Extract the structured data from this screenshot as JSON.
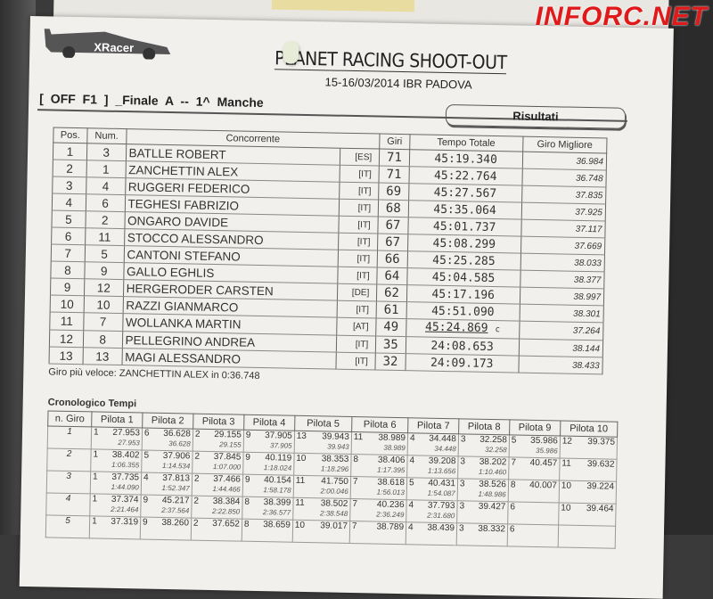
{
  "header": {
    "logo_text": "XRacer",
    "title": "PLANET RACING SHOOT-OUT",
    "subtitle": "15-16/03/2014 IBR PADOVA",
    "race": "[ OFF F1 ]  _Finale A  -- 1^ Manche",
    "results_label": "Risultati"
  },
  "results": {
    "columns": [
      "Pos.",
      "Num.",
      "Concorrente",
      "Giri",
      "Tempo Totale",
      "Giro Migliore"
    ],
    "rows": [
      {
        "pos": "1",
        "num": "3",
        "name": "BATLLE ROBERT",
        "nat": "[ES]",
        "laps": "71",
        "total": "45:19.340",
        "best": "36.984"
      },
      {
        "pos": "2",
        "num": "1",
        "name": "ZANCHETTIN ALEX",
        "nat": "[IT]",
        "laps": "71",
        "total": "45:22.764",
        "best": "36.748"
      },
      {
        "pos": "3",
        "num": "4",
        "name": "RUGGERI FEDERICO",
        "nat": "[IT]",
        "laps": "69",
        "total": "45:27.567",
        "best": "37.835"
      },
      {
        "pos": "4",
        "num": "6",
        "name": "TEGHESI FABRIZIO",
        "nat": "[IT]",
        "laps": "68",
        "total": "45:35.064",
        "best": "37.925"
      },
      {
        "pos": "5",
        "num": "2",
        "name": "ONGARO DAVIDE",
        "nat": "[IT]",
        "laps": "67",
        "total": "45:01.737",
        "best": "37.117"
      },
      {
        "pos": "6",
        "num": "11",
        "name": "STOCCO ALESSANDRO",
        "nat": "[IT]",
        "laps": "67",
        "total": "45:08.299",
        "best": "37.669"
      },
      {
        "pos": "7",
        "num": "5",
        "name": "CANTONI STEFANO",
        "nat": "[IT]",
        "laps": "66",
        "total": "45:25.285",
        "best": "38.033"
      },
      {
        "pos": "8",
        "num": "9",
        "name": "GALLO EGHLIS",
        "nat": "[IT]",
        "laps": "64",
        "total": "45:04.585",
        "best": "38.377"
      },
      {
        "pos": "9",
        "num": "12",
        "name": "HERGERODER CARSTEN",
        "nat": "[DE]",
        "laps": "62",
        "total": "45:17.196",
        "best": "38.997"
      },
      {
        "pos": "10",
        "num": "10",
        "name": "RAZZI GIANMARCO",
        "nat": "[IT]",
        "laps": "61",
        "total": "45:51.090",
        "best": "38.301"
      },
      {
        "pos": "11",
        "num": "7",
        "name": "WOLLANKA MARTIN",
        "nat": "[AT]",
        "laps": "49",
        "total": "45:24.869",
        "flag": "c",
        "best": "37.264"
      },
      {
        "pos": "12",
        "num": "8",
        "name": "PELLEGRINO ANDREA",
        "nat": "[IT]",
        "laps": "35",
        "total": "24:08.653",
        "best": "38.144"
      },
      {
        "pos": "13",
        "num": "13",
        "name": "MAGI ALESSANDRO",
        "nat": "[IT]",
        "laps": "32",
        "total": "24:09.173",
        "best": "38.433"
      }
    ],
    "fastest_lap": "Giro più veloce:  ZANCHETTIN ALEX in 0:36.748"
  },
  "chrono": {
    "title": "Cronologico Tempi",
    "columns": [
      "n. Giro",
      "Pilota 1",
      "Pilota 2",
      "Pilota 3",
      "Pilota 4",
      "Pilota 5",
      "Pilota 6",
      "Pilota 7",
      "Pilota 8",
      "Pilota 9",
      "Pilota 10"
    ],
    "laps": [
      {
        "lap": "1",
        "cells": [
          [
            "1",
            "27.953",
            "27.953"
          ],
          [
            "6",
            "36.628",
            "36.628"
          ],
          [
            "2",
            "29.155",
            "29.155"
          ],
          [
            "9",
            "37.905",
            "37.905"
          ],
          [
            "13",
            "39.943",
            "39.943"
          ],
          [
            "11",
            "38.989",
            "38.989"
          ],
          [
            "4",
            "34.448",
            "34.448"
          ],
          [
            "3",
            "32.258",
            "32.258"
          ],
          [
            "5",
            "35.986",
            "35.986"
          ],
          [
            "12",
            "39.375",
            ""
          ]
        ]
      },
      {
        "lap": "2",
        "cells": [
          [
            "1",
            "38.402",
            "1:06.355"
          ],
          [
            "5",
            "37.906",
            "1:14.534"
          ],
          [
            "2",
            "37.845",
            "1:07.000"
          ],
          [
            "9",
            "40.119",
            "1:18.024"
          ],
          [
            "10",
            "38.353",
            "1:18.296"
          ],
          [
            "8",
            "38.406",
            "1:17.395"
          ],
          [
            "4",
            "39.208",
            "1:13.656"
          ],
          [
            "3",
            "38.202",
            "1:10.460"
          ],
          [
            "7",
            "40.457",
            ""
          ],
          [
            "11",
            "39.632",
            ""
          ]
        ]
      },
      {
        "lap": "3",
        "cells": [
          [
            "1",
            "37.735",
            "1:44.090"
          ],
          [
            "4",
            "37.813",
            "1:52.347"
          ],
          [
            "2",
            "37.466",
            "1:44.466"
          ],
          [
            "9",
            "40.154",
            "1:58.178"
          ],
          [
            "11",
            "41.750",
            "2:00.046"
          ],
          [
            "7",
            "38.618",
            "1:56.013"
          ],
          [
            "5",
            "40.431",
            "1:54.087"
          ],
          [
            "3",
            "38.526",
            "1:48.986"
          ],
          [
            "8",
            "40.007",
            ""
          ],
          [
            "10",
            "39.224",
            ""
          ]
        ]
      },
      {
        "lap": "4",
        "cells": [
          [
            "1",
            "37.374",
            "2:21.464"
          ],
          [
            "9",
            "45.217",
            "2:37.564"
          ],
          [
            "2",
            "38.384",
            "2:22.850"
          ],
          [
            "8",
            "38.399",
            "2:36.577"
          ],
          [
            "11",
            "38.502",
            "2:38.548"
          ],
          [
            "7",
            "40.236",
            "2:36.249"
          ],
          [
            "4",
            "37.793",
            "2:31.680"
          ],
          [
            "3",
            "39.427",
            ""
          ],
          [
            "6",
            "",
            ""
          ],
          [
            "10",
            "39.464",
            ""
          ]
        ]
      },
      {
        "lap": "5",
        "cells": [
          [
            "1",
            "37.319",
            ""
          ],
          [
            "9",
            "38.260",
            ""
          ],
          [
            "2",
            "37.652",
            ""
          ],
          [
            "8",
            "38.659",
            ""
          ],
          [
            "10",
            "39.017",
            ""
          ],
          [
            "7",
            "38.789",
            ""
          ],
          [
            "4",
            "38.439",
            ""
          ],
          [
            "3",
            "38.332",
            ""
          ],
          [
            "6",
            "",
            ""
          ],
          [
            "",
            "",
            ""
          ]
        ]
      }
    ]
  },
  "watermark": "INFORC.NET"
}
